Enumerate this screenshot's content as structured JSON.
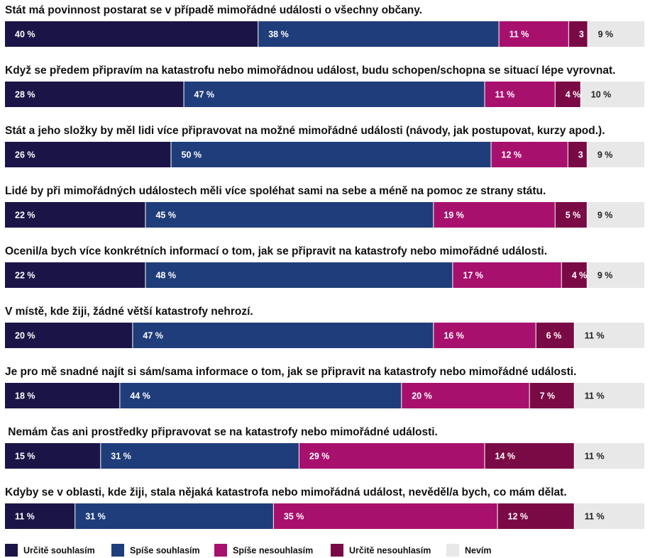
{
  "chart_data": {
    "type": "bar",
    "orientation": "horizontal-stacked-100",
    "legend_position": "bottom",
    "series": [
      {
        "name": "Určitě souhlasím",
        "color": "#1b1547"
      },
      {
        "name": "Spíše souhlasím",
        "color": "#1f3d7a"
      },
      {
        "name": "Spíše nesouhlasím",
        "color": "#a8106e"
      },
      {
        "name": "Určitě nesouhlasím",
        "color": "#7a0a45"
      },
      {
        "name": "Nevím",
        "color": "#e8e8e8"
      }
    ],
    "rows": [
      {
        "question": "Stát má povinnost postarat se v případě mimořádné události o všechny občany.",
        "values": [
          40,
          38,
          11,
          3,
          9
        ],
        "labels": [
          "40 %",
          "38 %",
          "11 %",
          "3",
          "9 %"
        ]
      },
      {
        "question": "Když se předem připravím na katastrofu nebo mimořádnou událost, budu schopen/schopna se situací lépe vyrovnat.",
        "values": [
          28,
          47,
          11,
          4,
          10
        ],
        "labels": [
          "28 %",
          "47 %",
          "11 %",
          "4 %",
          "10 %"
        ]
      },
      {
        "question": "Stát a jeho složky by měl lidi více připravovat na možné mimořádné události (návody, jak postupovat, kurzy apod.).",
        "values": [
          26,
          50,
          12,
          3,
          9
        ],
        "labels": [
          "26 %",
          "50 %",
          "12 %",
          "3",
          "9 %"
        ]
      },
      {
        "question": "Lidé by při mimořádných událostech měli více spoléhat sami na sebe a méně na pomoc ze strany státu.",
        "values": [
          22,
          45,
          19,
          5,
          9
        ],
        "labels": [
          "22 %",
          "45 %",
          "19 %",
          "5 %",
          "9 %"
        ]
      },
      {
        "question": "Ocenil/a bych více konkrétních informací o tom, jak se připravit na katastrofy nebo mimořádné události.",
        "values": [
          22,
          48,
          17,
          4,
          9
        ],
        "labels": [
          "22 %",
          "48 %",
          "17 %",
          "4 %",
          "9 %"
        ]
      },
      {
        "question": "V místě, kde žiji, žádné větší katastrofy nehrozí.",
        "values": [
          20,
          47,
          16,
          6,
          11
        ],
        "labels": [
          "20 %",
          "47 %",
          "16 %",
          "6 %",
          "11 %"
        ]
      },
      {
        "question": "Je pro mě snadné najít si sám/sama informace o tom, jak se připravit na katastrofy nebo mimořádné události.",
        "values": [
          18,
          44,
          20,
          7,
          11
        ],
        "labels": [
          "18 %",
          "44 %",
          "20 %",
          "7 %",
          "11 %"
        ]
      },
      {
        "question": " Nemám čas ani prostředky připravovat se na katastrofy nebo mimořádné události.",
        "values": [
          15,
          31,
          29,
          14,
          11
        ],
        "labels": [
          "15 %",
          "31 %",
          "29 %",
          "14 %",
          "11 %"
        ]
      },
      {
        "question": "Kdyby se v oblasti, kde žiji, stala nějaká katastrofa nebo mimořádná událost, nevěděl/a bych, co mám dělat.",
        "values": [
          11,
          31,
          35,
          12,
          11
        ],
        "labels": [
          "11 %",
          "31 %",
          "35 %",
          "12 %",
          "11 %"
        ]
      }
    ]
  },
  "label_colors": {
    "light": "#ffffff",
    "dark": "#222222"
  }
}
